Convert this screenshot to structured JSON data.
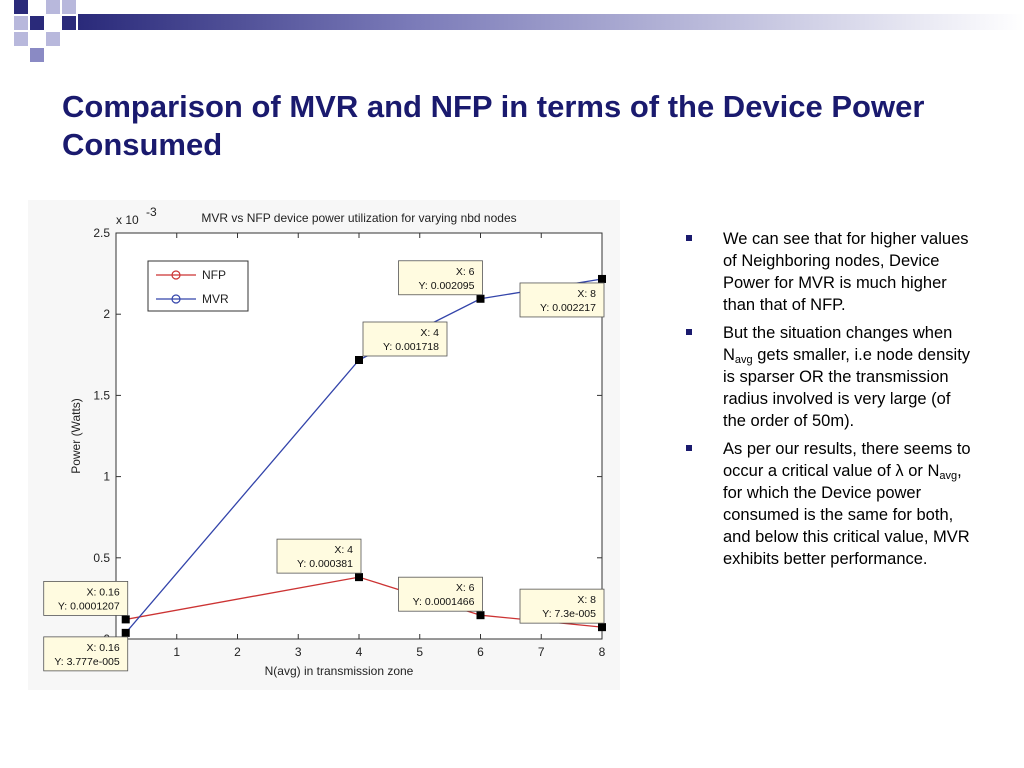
{
  "slide": {
    "title": "Comparison of MVR and NFP in terms of the Device Power Consumed"
  },
  "bullets": [
    {
      "parts": [
        "We can see that for higher values of Neighboring nodes, Device Power for MVR is much higher than that of NFP."
      ]
    },
    {
      "parts": [
        "But the situation changes when N",
        "avg",
        " gets smaller, i.e node density is sparser OR the transmission radius involved is very large (of the order of 50m)."
      ]
    },
    {
      "parts": [
        "As per our results, there seems to occur a critical value of λ or N",
        "avg",
        ", for which the Device power consumed is the same for both, and below this critical value, MVR exhibits better performance."
      ]
    }
  ],
  "colors": {
    "title": "#1a1a6e",
    "bullet": "#1a1a6e",
    "nfp_line": "#cc3333",
    "mvr_line": "#3344aa",
    "grid": "#c8c8c8"
  },
  "chart_data": {
    "type": "line",
    "title": "MVR vs NFP device power utilization for varying nbd nodes",
    "xlabel": "N(avg) in transmission zone",
    "ylabel": "Power (Watts)",
    "y_exponent_label": "x 10",
    "y_exponent_power": "-3",
    "xlim": [
      0,
      8
    ],
    "ylim": [
      0,
      2.5
    ],
    "x_ticks": [
      1,
      2,
      3,
      4,
      5,
      6,
      7,
      8
    ],
    "y_ticks": [
      0,
      0.5,
      1,
      1.5,
      2,
      2.5
    ],
    "y_tick_labels": [
      "0",
      "0.5",
      "1",
      "1.5",
      "2",
      "2.5"
    ],
    "grid": false,
    "legend_position": "top-left",
    "series": [
      {
        "name": "NFP",
        "color": "#cc3333",
        "x": [
          0.16,
          4,
          6,
          8
        ],
        "y": [
          0.1207,
          0.381,
          0.1466,
          0.073
        ]
      },
      {
        "name": "MVR",
        "color": "#3344aa",
        "x": [
          0.16,
          4,
          6,
          8
        ],
        "y": [
          0.03777,
          1.718,
          2.095,
          2.217
        ]
      }
    ],
    "datatips": [
      {
        "x": 0.16,
        "y": 0.1207,
        "label_x": "X: 0.16",
        "label_y": "Y: 0.0001207",
        "place": "above-left"
      },
      {
        "x": 0.16,
        "y": 0.03777,
        "label_x": "X: 0.16",
        "label_y": "Y: 3.777e-005",
        "place": "below-left"
      },
      {
        "x": 4,
        "y": 0.381,
        "label_x": "X: 4",
        "label_y": "Y: 0.000381",
        "place": "above-left"
      },
      {
        "x": 4,
        "y": 1.718,
        "label_x": "X: 4",
        "label_y": "Y: 0.001718",
        "place": "above-right"
      },
      {
        "x": 6,
        "y": 0.1466,
        "label_x": "X: 6",
        "label_y": "Y: 0.0001466",
        "place": "above-left"
      },
      {
        "x": 6,
        "y": 2.095,
        "label_x": "X: 6",
        "label_y": "Y: 0.002095",
        "place": "above-left"
      },
      {
        "x": 8,
        "y": 0.073,
        "label_x": "X: 8",
        "label_y": "Y: 7.3e-005",
        "place": "above-left"
      },
      {
        "x": 8,
        "y": 2.217,
        "label_x": "X: 8",
        "label_y": "Y: 0.002217",
        "place": "below-left"
      }
    ]
  }
}
